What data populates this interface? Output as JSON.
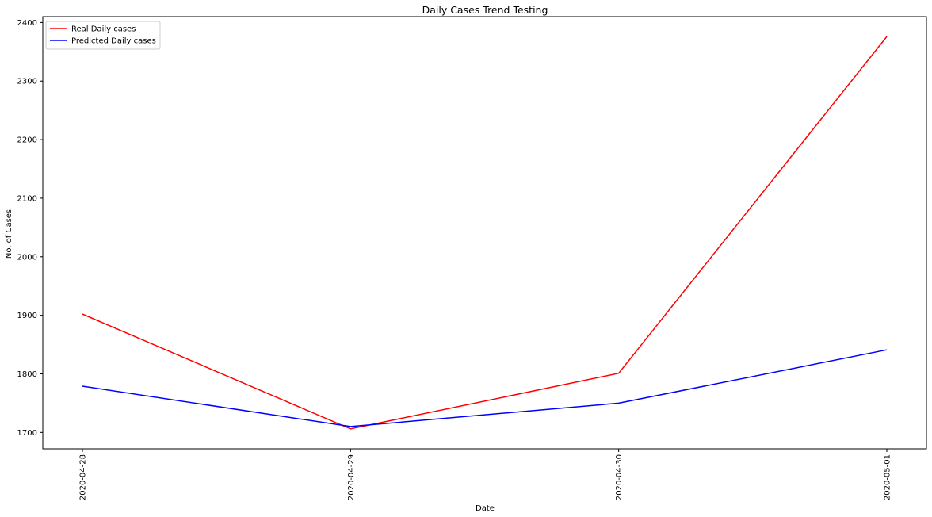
{
  "chart_data": {
    "type": "line",
    "title": "Daily Cases Trend Testing",
    "xlabel": "Date",
    "ylabel": "No. of Cases",
    "categories": [
      "2020-04-28",
      "2020-04-29",
      "2020-04-30",
      "2020-05-01"
    ],
    "yticks": [
      1700,
      1800,
      1900,
      2000,
      2100,
      2200,
      2300,
      2400
    ],
    "ylim": [
      1672,
      2410
    ],
    "grid": false,
    "legend_position": "top-left",
    "series": [
      {
        "name": "Real Daily cases",
        "color": "#ff0000",
        "values": [
          1902,
          1706,
          1801,
          2376
        ]
      },
      {
        "name": "Predicted Daily cases",
        "color": "#0000ff",
        "values": [
          1779,
          1710,
          1750,
          1841
        ]
      }
    ]
  }
}
